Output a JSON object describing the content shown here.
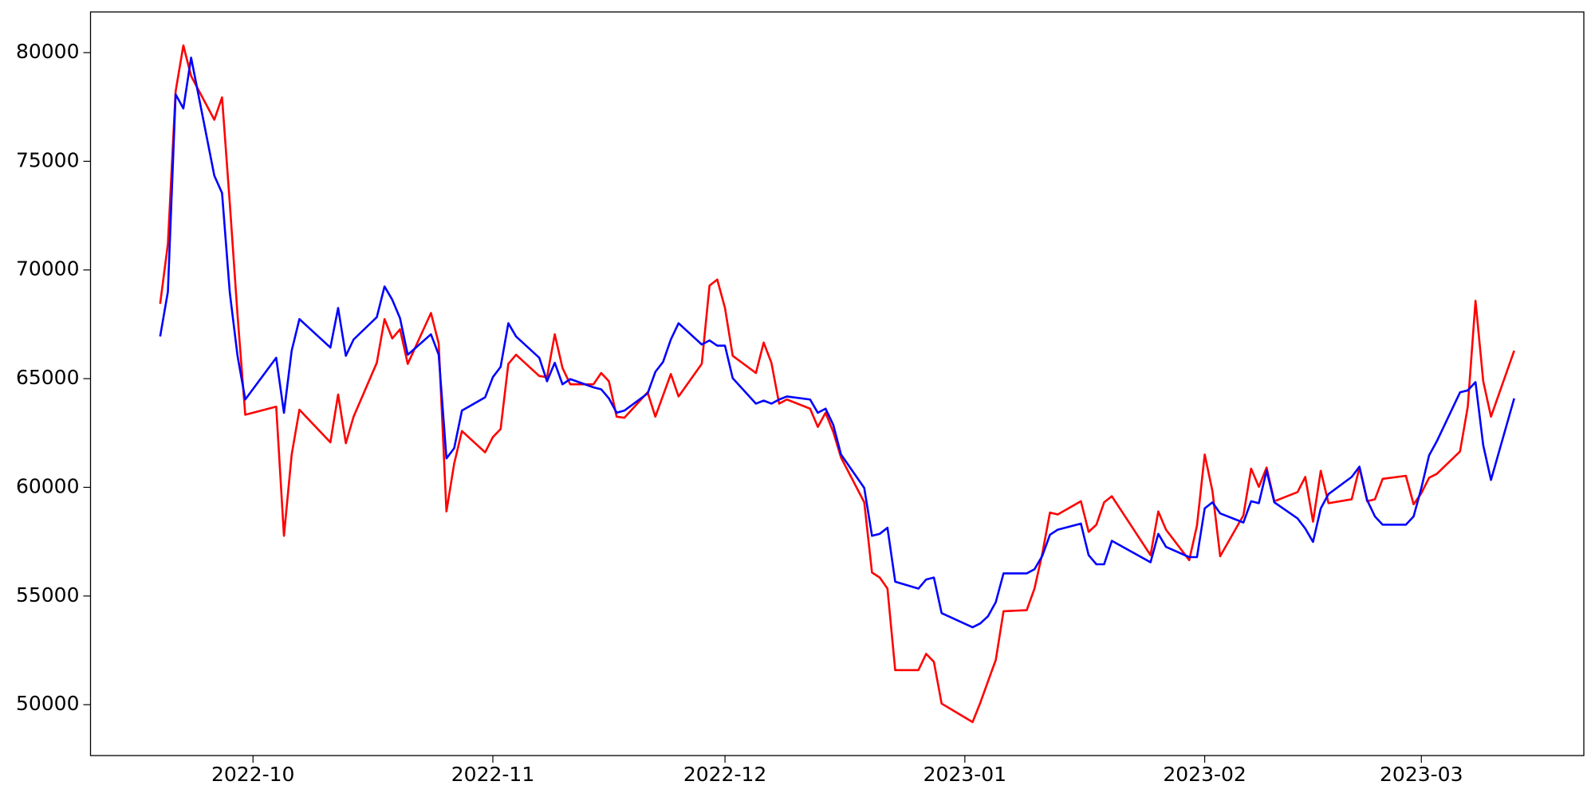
{
  "chart_data": {
    "type": "line",
    "x": [
      "2022-09-19",
      "2022-09-20",
      "2022-09-21",
      "2022-09-22",
      "2022-09-23",
      "2022-09-26",
      "2022-09-27",
      "2022-09-28",
      "2022-09-29",
      "2022-09-30",
      "2022-10-04",
      "2022-10-05",
      "2022-10-06",
      "2022-10-07",
      "2022-10-11",
      "2022-10-12",
      "2022-10-13",
      "2022-10-14",
      "2022-10-17",
      "2022-10-18",
      "2022-10-19",
      "2022-10-20",
      "2022-10-21",
      "2022-10-24",
      "2022-10-25",
      "2022-10-26",
      "2022-10-27",
      "2022-10-28",
      "2022-10-31",
      "2022-11-01",
      "2022-11-02",
      "2022-11-03",
      "2022-11-04",
      "2022-11-07",
      "2022-11-08",
      "2022-11-09",
      "2022-11-10",
      "2022-11-11",
      "2022-11-14",
      "2022-11-15",
      "2022-11-16",
      "2022-11-17",
      "2022-11-18",
      "2022-11-21",
      "2022-11-22",
      "2022-11-23",
      "2022-11-24",
      "2022-11-25",
      "2022-11-28",
      "2022-11-29",
      "2022-11-30",
      "2022-12-01",
      "2022-12-02",
      "2022-12-05",
      "2022-12-06",
      "2022-12-07",
      "2022-12-08",
      "2022-12-09",
      "2022-12-12",
      "2022-12-13",
      "2022-12-14",
      "2022-12-15",
      "2022-12-16",
      "2022-12-19",
      "2022-12-20",
      "2022-12-21",
      "2022-12-22",
      "2022-12-23",
      "2022-12-26",
      "2022-12-27",
      "2022-12-28",
      "2022-12-29",
      "2023-01-02",
      "2023-01-03",
      "2023-01-04",
      "2023-01-05",
      "2023-01-06",
      "2023-01-09",
      "2023-01-10",
      "2023-01-11",
      "2023-01-12",
      "2023-01-13",
      "2023-01-16",
      "2023-01-17",
      "2023-01-18",
      "2023-01-19",
      "2023-01-20",
      "2023-01-25",
      "2023-01-26",
      "2023-01-27",
      "2023-01-30",
      "2023-01-31",
      "2023-02-01",
      "2023-02-02",
      "2023-02-03",
      "2023-02-06",
      "2023-02-07",
      "2023-02-08",
      "2023-02-09",
      "2023-02-10",
      "2023-02-13",
      "2023-02-14",
      "2023-02-15",
      "2023-02-16",
      "2023-02-17",
      "2023-02-20",
      "2023-02-21",
      "2023-02-22",
      "2023-02-23",
      "2023-02-24",
      "2023-02-27",
      "2023-02-28",
      "2023-03-01",
      "2023-03-02",
      "2023-03-03",
      "2023-03-06",
      "2023-03-07",
      "2023-03-08",
      "2023-03-09",
      "2023-03-10",
      "2023-03-13"
    ],
    "series": [
      {
        "color": "#ff0000",
        "values": [
          68440,
          71200,
          78220,
          80330,
          78920,
          76910,
          77940,
          73070,
          67930,
          63340,
          63710,
          57770,
          61510,
          63570,
          62070,
          64270,
          62030,
          63250,
          65730,
          67740,
          66850,
          67270,
          65680,
          68020,
          66620,
          58890,
          61090,
          62590,
          61610,
          62310,
          62680,
          65680,
          66100,
          65120,
          65070,
          67040,
          65490,
          64740,
          64740,
          65260,
          64880,
          63250,
          63200,
          64370,
          63250,
          64230,
          65210,
          64180,
          65680,
          69280,
          69560,
          68250,
          66050,
          65260,
          66660,
          65730,
          63850,
          64040,
          63620,
          62780,
          63430,
          62540,
          61370,
          59310,
          56080,
          55850,
          55340,
          51590,
          51590,
          52340,
          51970,
          50050,
          49200,
          50090,
          51080,
          52060,
          54300,
          54350,
          55340,
          56930,
          58840,
          58750,
          59360,
          57950,
          58280,
          59310,
          59590,
          56880,
          58890,
          58050,
          56650,
          58240,
          61510,
          59830,
          56830,
          58710,
          60860,
          60020,
          60910,
          59360,
          59780,
          60480,
          58420,
          60760,
          59270,
          59450,
          60910,
          59360,
          59450,
          60390,
          60530,
          59220,
          59730,
          60440,
          60620,
          61650,
          63710,
          68580,
          64880,
          63250,
          66290
        ]
      },
      {
        "color": "#0000ff",
        "values": [
          66940,
          69000,
          78080,
          77430,
          79770,
          74340,
          73540,
          68960,
          66050,
          64040,
          65960,
          63430,
          66290,
          67740,
          66430,
          68250,
          66050,
          66800,
          67830,
          69240,
          68630,
          67780,
          66100,
          67040,
          66100,
          61330,
          61800,
          63530,
          64140,
          65070,
          65540,
          67550,
          66940,
          65960,
          64880,
          65730,
          64740,
          64980,
          64600,
          64510,
          64090,
          63430,
          63530,
          64320,
          65310,
          65770,
          66800,
          67550,
          66570,
          66760,
          66520,
          66520,
          65020,
          63850,
          63990,
          63850,
          64040,
          64180,
          64040,
          63430,
          63620,
          62870,
          61510,
          59970,
          57770,
          57860,
          58140,
          55660,
          55340,
          55760,
          55850,
          54210,
          53560,
          53740,
          54070,
          54720,
          56040,
          56040,
          56230,
          56840,
          57820,
          58050,
          58330,
          56880,
          56460,
          56460,
          57540,
          56550,
          57860,
          57260,
          56790,
          56790,
          59030,
          59310,
          58800,
          58380,
          59360,
          59270,
          60770,
          59310,
          58570,
          58100,
          57490,
          59030,
          59690,
          60480,
          60950,
          59410,
          58660,
          58280,
          58280,
          58660,
          59970,
          61470,
          62120,
          64370,
          64460,
          64840,
          61930,
          60340,
          64090
        ]
      }
    ],
    "xlim": [
      "2022-09-10",
      "2023-03-22"
    ],
    "xticks": [
      "2022-10",
      "2022-11",
      "2022-12",
      "2023-01",
      "2023-02",
      "2023-03"
    ],
    "ylim": [
      47660,
      81870
    ],
    "yticks": [
      50000,
      55000,
      60000,
      65000,
      70000,
      75000,
      80000
    ],
    "grid": false
  }
}
